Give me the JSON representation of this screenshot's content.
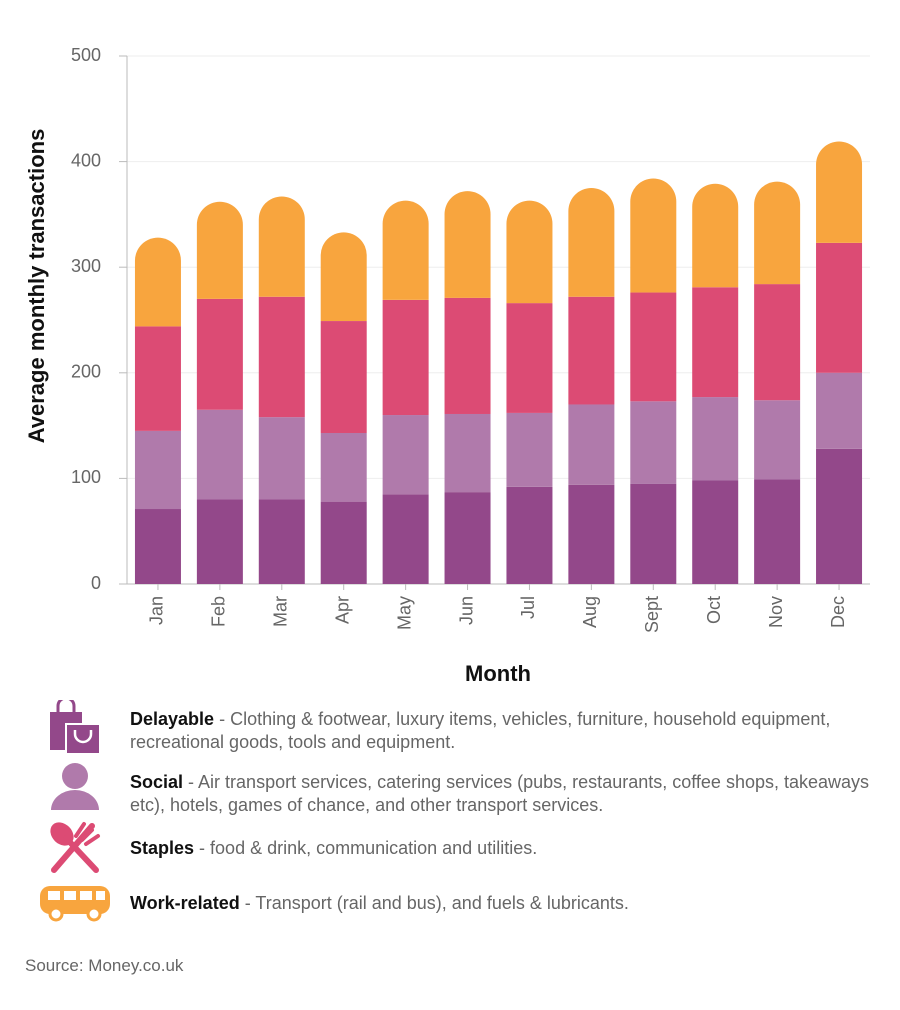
{
  "chart_data": {
    "type": "stacked-bar",
    "x_label": "Month",
    "y_label": "Average monthly transactions",
    "categories": [
      "Jan",
      "Feb",
      "Mar",
      "Apr",
      "May",
      "Jun",
      "Jul",
      "Aug",
      "Sept",
      "Oct",
      "Nov",
      "Dec"
    ],
    "series": [
      {
        "name": "Delayable",
        "description": "- Clothing & footwear, luxury items, vehicles, furniture, household equipment, recreational goods, tools and equipment.",
        "color": "#93488a",
        "values": [
          71,
          80,
          80,
          78,
          85,
          87,
          92,
          94,
          95,
          98,
          99,
          128
        ]
      },
      {
        "name": "Social",
        "description": "- Air transport services, catering services (pubs, restaurants, coffee shops, takeaways etc), hotels, games of chance, and other transport services.",
        "color": "#b07aab",
        "values": [
          74,
          85,
          78,
          65,
          75,
          74,
          70,
          76,
          78,
          79,
          75,
          72
        ]
      },
      {
        "name": "Staples",
        "description": "- food & drink, communication and utilities.",
        "color": "#dc4b74",
        "values": [
          99,
          105,
          114,
          106,
          109,
          110,
          104,
          102,
          103,
          104,
          110,
          123
        ]
      },
      {
        "name": "Work-related",
        "description": "- Transport (rail and bus), and fuels & lubricants.",
        "color": "#f8a53e",
        "values": [
          84,
          92,
          95,
          84,
          94,
          101,
          97,
          103,
          108,
          98,
          97,
          96
        ]
      }
    ],
    "ylim": [
      0,
      500
    ],
    "yticks": [
      0,
      100,
      200,
      300,
      400,
      500
    ],
    "grid": true
  },
  "source": "Source: Money.co.uk"
}
